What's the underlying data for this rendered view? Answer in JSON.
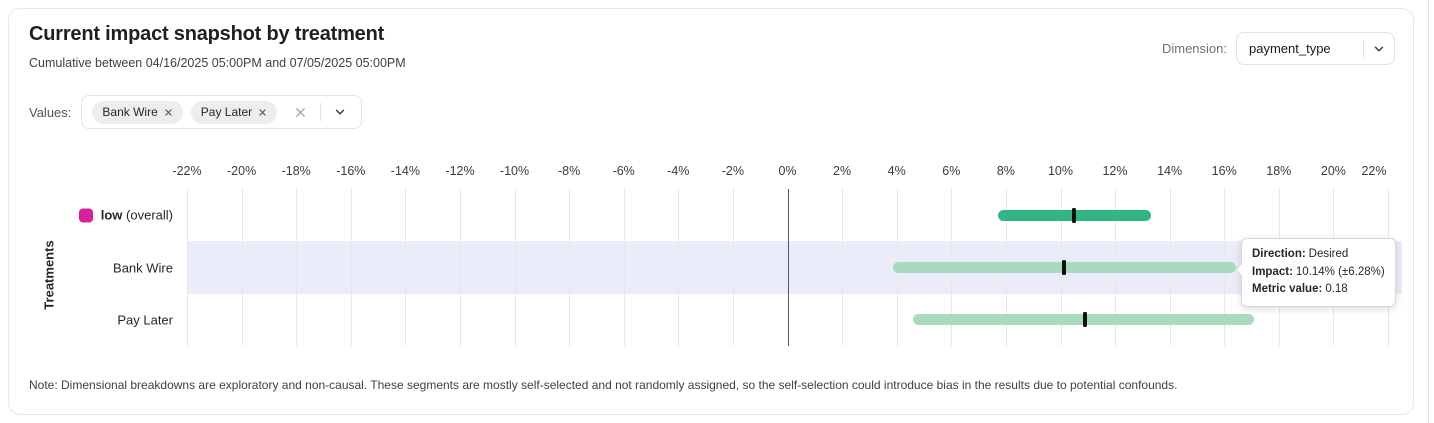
{
  "card": {
    "title": "Current impact snapshot by treatment",
    "subtitle": "Cumulative between 04/16/2025 05:00PM and 07/05/2025 05:00PM",
    "note": "Note: Dimensional breakdowns are exploratory and non-causal. These segments are mostly self-selected and not randomly assigned, so the self-selection could introduce bias in the results due to potential confounds."
  },
  "dimension": {
    "label": "Dimension:",
    "selected_value": "payment_type"
  },
  "values_filter": {
    "label": "Values:",
    "chips": [
      {
        "label": "Bank Wire"
      },
      {
        "label": "Pay Later"
      }
    ],
    "icons": {
      "chip_remove": "x-icon",
      "clear_all": "x-icon",
      "open_dropdown": "chevron-down-icon"
    }
  },
  "tooltip": {
    "direction_label": "Direction:",
    "direction_value": "Desired",
    "impact_label": "Impact:",
    "impact_value": "10.14% (±6.28%)",
    "metric_label": "Metric value:",
    "metric_value": "0.18"
  },
  "chart_data": {
    "type": "bar",
    "subtype": "horizontal-confidence-interval",
    "ylabel": "Treatments",
    "x_axis": {
      "min": -22,
      "max": 22,
      "tick_step": 2,
      "unit": "%",
      "tick_labels": [
        "-22%",
        "-20%",
        "-18%",
        "-16%",
        "-14%",
        "-12%",
        "-10%",
        "-8%",
        "-6%",
        "-4%",
        "-2%",
        "0%",
        "2%",
        "4%",
        "6%",
        "8%",
        "10%",
        "12%",
        "14%",
        "16%",
        "18%",
        "20%",
        "22%"
      ]
    },
    "grid": true,
    "marker_color": "#111111",
    "highlight_color": "#ebecfa",
    "rows": [
      {
        "label": "low",
        "label_suffix": " (overall)",
        "legend_color": "#d6219c",
        "bar_color": "#31b583",
        "point": 10.5,
        "ci_low": 7.7,
        "ci_high": 13.3
      },
      {
        "label": "Bank Wire",
        "bar_color": "#a7dabe",
        "point": 10.14,
        "ci_low": 3.86,
        "ci_high": 16.42,
        "highlighted": true,
        "direction": "Desired",
        "metric_value": 0.18
      },
      {
        "label": "Pay Later",
        "bar_color": "#a7dabe",
        "point": 10.9,
        "ci_low": 4.6,
        "ci_high": 17.1
      }
    ]
  }
}
